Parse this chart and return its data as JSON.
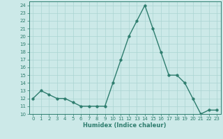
{
  "x": [
    0,
    1,
    2,
    3,
    4,
    5,
    6,
    7,
    8,
    9,
    10,
    11,
    12,
    13,
    14,
    15,
    16,
    17,
    18,
    19,
    20,
    21,
    22,
    23
  ],
  "y": [
    12,
    13,
    12.5,
    12,
    12,
    11.5,
    11,
    11,
    11,
    11,
    14,
    17,
    20,
    22,
    24,
    21,
    18,
    15,
    15,
    14,
    12,
    10,
    10.5,
    10.5
  ],
  "xlabel": "Humidex (Indice chaleur)",
  "line_color": "#2e7d6e",
  "marker": "o",
  "marker_size": 2.5,
  "line_width": 1.0,
  "bg_color": "#cce9e8",
  "grid_color": "#aad4d2",
  "xlim": [
    -0.5,
    23.5
  ],
  "ylim": [
    10,
    24.5
  ],
  "yticks": [
    10,
    11,
    12,
    13,
    14,
    15,
    16,
    17,
    18,
    19,
    20,
    21,
    22,
    23,
    24
  ],
  "xticks": [
    0,
    1,
    2,
    3,
    4,
    5,
    6,
    7,
    8,
    9,
    10,
    11,
    12,
    13,
    14,
    15,
    16,
    17,
    18,
    19,
    20,
    21,
    22,
    23
  ],
  "tick_fontsize": 5.0,
  "label_fontsize": 6.0,
  "axis_color": "#2e7d6e",
  "tick_color": "#2e7d6e"
}
